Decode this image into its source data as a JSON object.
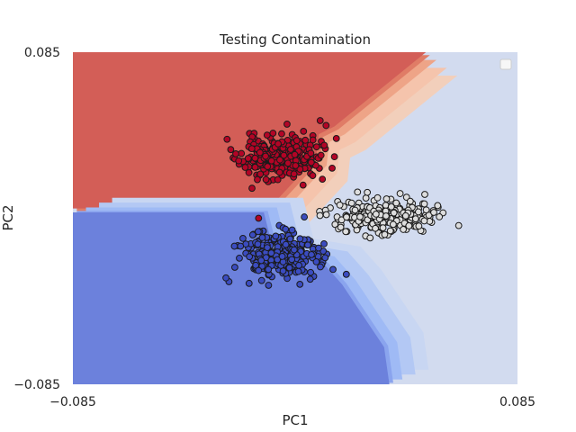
{
  "chart_data": {
    "type": "scatter",
    "title": "Testing Contamination",
    "xlabel": "PC1",
    "ylabel": "PC2",
    "xlim": [
      -0.085,
      0.085
    ],
    "ylim": [
      -0.085,
      0.085
    ],
    "xticks": [
      {
        "value": -0.085,
        "label": "−0.085"
      },
      {
        "value": 0.085,
        "label": "0.085"
      }
    ],
    "yticks": [
      {
        "value": -0.085,
        "label": "−0.085"
      },
      {
        "value": 0.085,
        "label": "0.085"
      }
    ],
    "grid": false,
    "legend": {
      "placement": "top-right",
      "entries": []
    },
    "background_regions": {
      "description": "filled decision-surface contours (coolwarm colormap)",
      "colors": [
        "#6c81dc",
        "#9fbaf5",
        "#c8d6f2",
        "#d2dbef",
        "#f2cfbb",
        "#eea487",
        "#d35e57"
      ],
      "top_region_polygon": [
        [
          -0.085,
          0.085
        ],
        [
          0.05,
          0.085
        ],
        [
          0.015,
          0.047
        ],
        [
          0.009,
          0.043
        ],
        [
          0.008,
          0.031
        ],
        [
          -0.01,
          0.005
        ],
        [
          -0.085,
          0.005
        ]
      ],
      "bottom_region_polygon": [
        [
          -0.085,
          -0.085
        ],
        [
          0.036,
          -0.085
        ],
        [
          0.034,
          -0.066
        ],
        [
          0.018,
          -0.034
        ],
        [
          0.01,
          -0.022
        ],
        [
          -0.008,
          -0.018
        ],
        [
          -0.012,
          0.003
        ],
        [
          -0.085,
          0.003
        ]
      ],
      "top_band_offsets": [
        0.012,
        0.008,
        0.004,
        0.0015
      ],
      "bottom_band_offsets": [
        0.015,
        0.01,
        0.005,
        0.0015
      ]
    },
    "series": [
      {
        "center": [
          -0.006,
          0.031
        ],
        "spread": [
          0.0075,
          0.0055
        ],
        "n": 290,
        "seed": 11,
        "color": "#b40426",
        "stroke": "#1a1a1a"
      },
      {
        "center": [
          -0.006,
          -0.019
        ],
        "spread": [
          0.0075,
          0.006
        ],
        "n": 280,
        "seed": 23,
        "color": "#3b4cc0",
        "stroke": "#1a1a1a"
      },
      {
        "center": [
          0.035,
          0.001
        ],
        "spread": [
          0.0095,
          0.004
        ],
        "n": 270,
        "seed": 37,
        "color": "#dddddd",
        "stroke": "#1a1a1a"
      }
    ],
    "outliers": [
      {
        "x": -0.014,
        "y": 0.0,
        "color": "#b40426"
      },
      {
        "x": 0.044,
        "y": 0.0087,
        "color": "#dddddd"
      },
      {
        "x": 0.053,
        "y": 0.003,
        "color": "#dddddd"
      }
    ]
  }
}
